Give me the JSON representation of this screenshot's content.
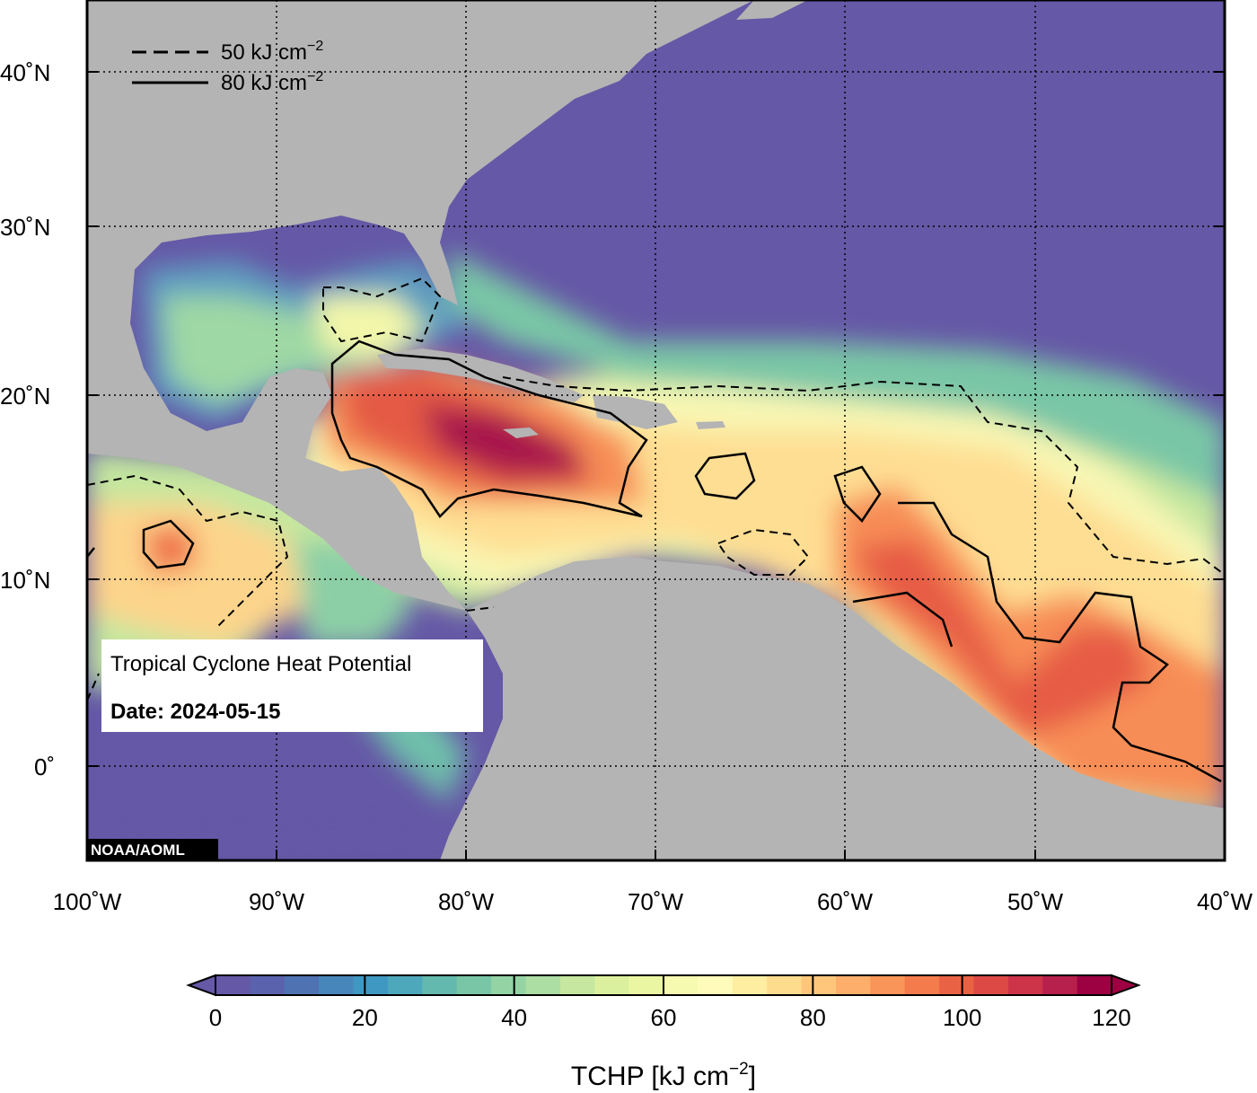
{
  "map": {
    "credit": "NOAA/AOML",
    "info": {
      "title": "Tropical Cyclone Heat Potential",
      "date_label": "Date: 2024-05-15"
    },
    "legend": [
      {
        "style": "dashed",
        "label": "50 kJ cm",
        "sup": "−2"
      },
      {
        "style": "solid",
        "label": "80 kJ cm",
        "sup": "−2"
      }
    ],
    "lon_ticks": [
      "100˚W",
      "90˚W",
      "80˚W",
      "70˚W",
      "60˚W",
      "50˚W",
      "40˚W"
    ],
    "lat_ticks": [
      {
        "label": "40˚N",
        "lat": 40
      },
      {
        "label": "30˚N",
        "lat": 30
      },
      {
        "label": "20˚N",
        "lat": 20
      },
      {
        "label": "10˚N",
        "lat": 10
      },
      {
        "label": "0˚",
        "lat": 0
      }
    ],
    "extent": {
      "lon": [
        -100,
        -40
      ],
      "lat": [
        -5,
        44
      ]
    },
    "colors": {
      "ocean_cold": "#6558a6",
      "land": "#b4b4b4",
      "frame": "#000000"
    }
  },
  "colorbar": {
    "title_prefix": "TCHP [kJ cm",
    "title_sup": "−2",
    "title_suffix": "]",
    "min": 0,
    "max": 120,
    "tick_labels": [
      "0",
      "20",
      "40",
      "60",
      "80",
      "100",
      "120"
    ],
    "colors": [
      "#6558a6",
      "#5a62ad",
      "#4f72b3",
      "#4786bb",
      "#3f98c1",
      "#4ea8bc",
      "#63b9ad",
      "#78c6a6",
      "#94d3a4",
      "#acdda2",
      "#c5e79f",
      "#dbf09e",
      "#ebf6a2",
      "#f6f9b0",
      "#fffcbb",
      "#feeea2",
      "#fedc8d",
      "#fdc67b",
      "#fcae6a",
      "#f99558",
      "#f47b4b",
      "#ea6244",
      "#dd4a45",
      "#cd3349",
      "#b71f4d",
      "#9e0142"
    ]
  }
}
